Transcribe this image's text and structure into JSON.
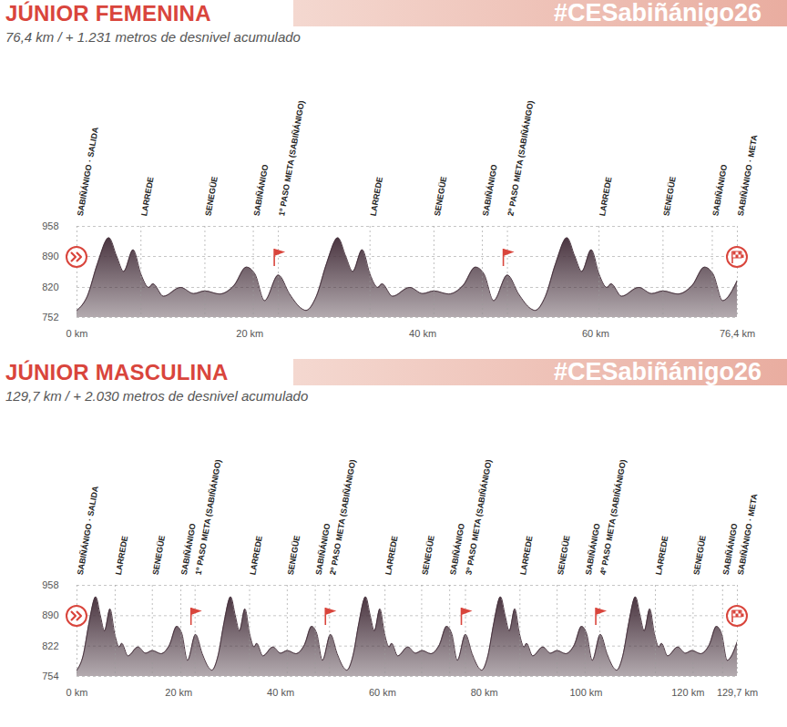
{
  "chart_data": [
    {
      "type": "area",
      "title": "JÚNIOR FEMENINA",
      "subtitle": "76,4 km / + 1.231 metros de desnivel acumulado",
      "banner": "#CESabiñánigo26",
      "color": "#4a3540",
      "x": [
        0,
        1.2,
        2.4,
        3.7,
        4.6,
        5.4,
        6.5,
        7.4,
        8.3,
        8.8,
        10.0,
        12.0,
        13.5,
        14.8,
        16.5,
        18.2,
        19.6,
        20.6,
        21.7,
        23.3,
        24.6,
        26.0,
        26.5,
        27.7,
        28.9,
        30.2,
        31.1,
        31.9,
        33.0,
        33.9,
        34.8,
        35.3,
        36.5,
        38.5,
        40.0,
        41.3,
        43.0,
        44.7,
        46.1,
        47.1,
        48.2,
        49.8,
        51.1,
        52.5,
        53,
        54.2,
        55.4,
        56.7,
        57.6,
        58.4,
        59.5,
        60.4,
        61.3,
        61.8,
        63.0,
        65.0,
        66.5,
        67.8,
        69.5,
        71.2,
        72.6,
        73.6,
        74.7,
        76.4
      ],
      "values": [
        768,
        800,
        875,
        932,
        890,
        856,
        905,
        850,
        820,
        828,
        800,
        820,
        806,
        812,
        805,
        825,
        866,
        850,
        790,
        848,
        805,
        772,
        768,
        800,
        875,
        932,
        890,
        856,
        905,
        850,
        820,
        828,
        800,
        820,
        806,
        812,
        805,
        825,
        866,
        850,
        790,
        848,
        805,
        772,
        768,
        800,
        875,
        932,
        890,
        856,
        905,
        850,
        820,
        828,
        800,
        820,
        806,
        812,
        805,
        825,
        866,
        850,
        790,
        836
      ],
      "xlim": [
        0,
        76.4
      ],
      "xticks": [
        {
          "value": 0,
          "label": "0 km"
        },
        {
          "value": 20,
          "label": "20 km"
        },
        {
          "value": 40,
          "label": "40 km"
        },
        {
          "value": 60,
          "label": "60 km"
        },
        {
          "value": 76.4,
          "label": "76,4 km"
        }
      ],
      "ylim": [
        752,
        958
      ],
      "yticks": [
        752,
        820,
        890,
        958
      ],
      "grid": true,
      "markers": [
        {
          "x": 0,
          "label": "SABIÑÁNIGO · SALIDA"
        },
        {
          "x": 7.4,
          "label": "LARREDE"
        },
        {
          "x": 14.8,
          "label": "SENEGÜE"
        },
        {
          "x": 20.4,
          "label": "SABIÑÁNIGO"
        },
        {
          "x": 23.3,
          "label": "1º PASO META (SABIÑÁNIGO)"
        },
        {
          "x": 33.9,
          "label": "LARREDE"
        },
        {
          "x": 41.3,
          "label": "SENEGÜE"
        },
        {
          "x": 46.9,
          "label": "SABIÑÁNIGO"
        },
        {
          "x": 49.8,
          "label": "2º PASO META (SABIÑÁNIGO)"
        },
        {
          "x": 60.4,
          "label": "LARREDE"
        },
        {
          "x": 67.8,
          "label": "SENEGÜE"
        },
        {
          "x": 73.5,
          "label": "SABIÑÁNIGO"
        },
        {
          "x": 76.4,
          "label": "SABIÑÁNIGO · META"
        }
      ],
      "flags": [
        23.3,
        49.8
      ]
    },
    {
      "type": "area",
      "title": "JÚNIOR MASCULINA",
      "subtitle": "129,7 km / + 2.030 metros de desnivel acumulado",
      "banner": "#CESabiñánigo26",
      "color": "#4a3540",
      "x": [
        0,
        1.2,
        2.4,
        3.7,
        4.6,
        5.4,
        6.5,
        7.4,
        8.3,
        8.8,
        10.0,
        12.0,
        13.5,
        14.8,
        16.5,
        18.2,
        19.6,
        20.6,
        21.7,
        23.3,
        24.6,
        26.0,
        26.5,
        27.7,
        28.9,
        30.2,
        31.1,
        31.9,
        33.0,
        33.9,
        34.8,
        35.3,
        36.5,
        38.5,
        40.0,
        41.3,
        43.0,
        44.7,
        46.1,
        47.1,
        48.2,
        49.8,
        51.1,
        52.5,
        53,
        54.2,
        55.4,
        56.7,
        57.6,
        58.4,
        59.5,
        60.4,
        61.3,
        61.8,
        63.0,
        65.0,
        66.5,
        67.8,
        69.5,
        71.2,
        72.6,
        73.6,
        74.7,
        76.3,
        77.6,
        79.0,
        79.5,
        80.7,
        81.9,
        83.2,
        84.1,
        84.9,
        86.0,
        86.9,
        87.8,
        88.3,
        89.5,
        91.5,
        93.0,
        94.3,
        96.0,
        97.7,
        99.1,
        100.1,
        101.2,
        102.8,
        104.1,
        105.5,
        106,
        107.2,
        108.4,
        109.7,
        110.6,
        111.4,
        112.5,
        113.4,
        114.3,
        114.8,
        116.0,
        118.0,
        119.5,
        120.8,
        122.5,
        124.2,
        125.6,
        126.6,
        127.7,
        129.7
      ],
      "values": [
        768,
        800,
        875,
        932,
        890,
        856,
        905,
        850,
        820,
        828,
        800,
        820,
        806,
        812,
        805,
        825,
        866,
        850,
        790,
        848,
        805,
        772,
        768,
        800,
        875,
        932,
        890,
        856,
        905,
        850,
        820,
        828,
        800,
        820,
        806,
        812,
        805,
        825,
        866,
        850,
        790,
        848,
        805,
        772,
        768,
        800,
        875,
        932,
        890,
        856,
        905,
        850,
        820,
        828,
        800,
        820,
        806,
        812,
        805,
        825,
        866,
        850,
        790,
        848,
        805,
        772,
        768,
        800,
        875,
        932,
        890,
        856,
        905,
        850,
        820,
        828,
        800,
        820,
        806,
        812,
        805,
        825,
        866,
        850,
        790,
        848,
        805,
        772,
        768,
        800,
        875,
        932,
        890,
        856,
        905,
        850,
        820,
        828,
        800,
        820,
        806,
        812,
        805,
        825,
        866,
        850,
        790,
        832
      ],
      "xlim": [
        0,
        129.7
      ],
      "xticks": [
        {
          "value": 0,
          "label": "0 km"
        },
        {
          "value": 20,
          "label": "20 km"
        },
        {
          "value": 40,
          "label": "40 km"
        },
        {
          "value": 60,
          "label": "60 km"
        },
        {
          "value": 80,
          "label": "80 km"
        },
        {
          "value": 100,
          "label": "100 km"
        },
        {
          "value": 120,
          "label": "120 km"
        },
        {
          "value": 129.7,
          "label": "129,7 km"
        }
      ],
      "ylim": [
        754,
        958
      ],
      "yticks": [
        754,
        822,
        890,
        958
      ],
      "grid": true,
      "markers": [
        {
          "x": 0,
          "label": "SABIÑÁNIGO · SALIDA"
        },
        {
          "x": 7.5,
          "label": "LARREDE"
        },
        {
          "x": 14.8,
          "label": "SENEGÜE"
        },
        {
          "x": 20.4,
          "label": "SABIÑÁNIGO"
        },
        {
          "x": 23.2,
          "label": "1º PASO META (SABIÑÁNIGO)"
        },
        {
          "x": 33.9,
          "label": "LARREDE"
        },
        {
          "x": 41.3,
          "label": "SENEGÜE"
        },
        {
          "x": 46.8,
          "label": "SABIÑÁNIGO"
        },
        {
          "x": 49.6,
          "label": "2º PASO META (SABIÑÁNIGO)"
        },
        {
          "x": 60.5,
          "label": "LARREDE"
        },
        {
          "x": 67.7,
          "label": "SENEGÜE"
        },
        {
          "x": 73.2,
          "label": "SABIÑÁNIGO"
        },
        {
          "x": 76.3,
          "label": "3º PASO META (SABIÑÁNIGO)"
        },
        {
          "x": 87.0,
          "label": "LARREDE"
        },
        {
          "x": 94.3,
          "label": "SENEGÜE"
        },
        {
          "x": 99.8,
          "label": "SABIÑÁNIGO"
        },
        {
          "x": 102.7,
          "label": "4º PASO META (SABIÑÁNIGO)"
        },
        {
          "x": 113.6,
          "label": "LARREDE"
        },
        {
          "x": 121.0,
          "label": "SENEGÜE"
        },
        {
          "x": 126.8,
          "label": "SABIÑÁNIGO"
        },
        {
          "x": 129.7,
          "label": "SABIÑÁNIGO · META"
        }
      ],
      "flags": [
        23.2,
        49.6,
        76.3,
        102.7
      ]
    }
  ]
}
